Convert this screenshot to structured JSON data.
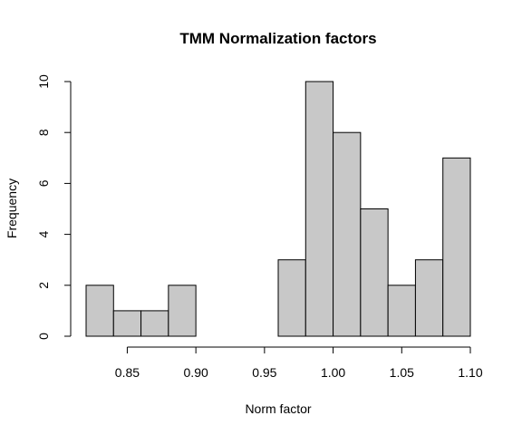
{
  "chart_data": {
    "type": "bar",
    "subtype": "histogram",
    "title": "TMM Normalization factors",
    "xlabel": "Norm factor",
    "ylabel": "Frequency",
    "bin_edges": [
      0.82,
      0.84,
      0.86,
      0.88,
      0.9,
      0.92,
      0.94,
      0.96,
      0.98,
      1.0,
      1.02,
      1.04,
      1.06,
      1.08,
      1.1
    ],
    "values": [
      2,
      1,
      1,
      2,
      0,
      0,
      0,
      3,
      10,
      8,
      5,
      2,
      3,
      7
    ],
    "xlim": [
      0.82,
      1.1
    ],
    "ylim": [
      0,
      10
    ],
    "x_ticks": [
      0.85,
      0.9,
      0.95,
      1.0,
      1.05,
      1.1
    ],
    "x_tick_labels": [
      "0.85",
      "0.90",
      "0.95",
      "1.00",
      "1.05",
      "1.10"
    ],
    "y_ticks": [
      0,
      2,
      4,
      6,
      8,
      10
    ],
    "y_tick_labels": [
      "0",
      "2",
      "4",
      "6",
      "8",
      "10"
    ],
    "grid": false,
    "bar_fill": "#c8c8c8",
    "bar_stroke": "#000000"
  }
}
